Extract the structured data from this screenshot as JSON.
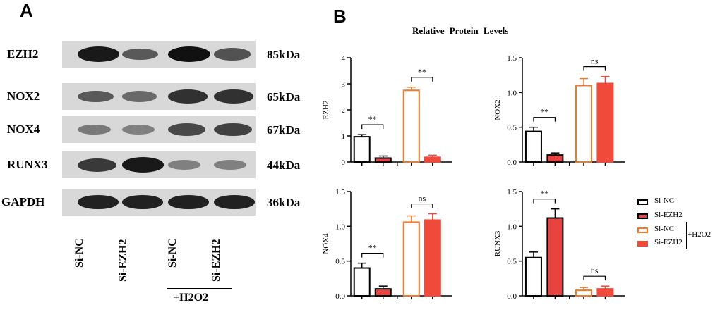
{
  "panelA": {
    "letter": "A",
    "lanes": [
      "Si-NC",
      "Si-EZH2",
      "Si-NC",
      "Si-EZH2"
    ],
    "treatment": "+H2O2",
    "blots": [
      {
        "protein": "EZH2",
        "size": "85kDa",
        "intensity": [
          0.95,
          0.55,
          1.0,
          0.6
        ]
      },
      {
        "protein": "NOX2",
        "size": "65kDa",
        "intensity": [
          0.55,
          0.45,
          0.8,
          0.8
        ]
      },
      {
        "protein": "NOX4",
        "size": "67kDa",
        "intensity": [
          0.35,
          0.3,
          0.65,
          0.7
        ]
      },
      {
        "protein": "RUNX3",
        "size": "44kDa",
        "intensity": [
          0.75,
          0.95,
          0.3,
          0.3
        ]
      },
      {
        "protein": "GAPDH",
        "size": "36kDa",
        "intensity": [
          0.9,
          0.9,
          0.9,
          0.9
        ]
      }
    ]
  },
  "panelB": {
    "letter": "B",
    "title": "Relative Protein Levels",
    "colors": {
      "outline_black": "#000000",
      "red_fill": "#e8433e",
      "orange_outline": "#f07a2a",
      "red_solid": "#f04a3a"
    },
    "legend": {
      "items": [
        "Si-NC",
        "Si-EZH2",
        "Si-NC",
        "Si-EZH2"
      ],
      "group_label": "H2O2"
    }
  },
  "chart_data": [
    {
      "type": "bar",
      "ylabel": "EZH2",
      "ylim": [
        0,
        4
      ],
      "yticks": [
        "0",
        "1",
        "2",
        "3",
        "4"
      ],
      "values": [
        0.97,
        0.15,
        2.75,
        0.18
      ],
      "errors": [
        0.08,
        0.08,
        0.12,
        0.08
      ],
      "annotations": [
        {
          "groups": [
            0,
            1
          ],
          "text": "**"
        },
        {
          "groups": [
            2,
            3
          ],
          "text": "**"
        }
      ]
    },
    {
      "type": "bar",
      "ylabel": "NOX2",
      "ylim": [
        0,
        1.5
      ],
      "yticks": [
        "0.0",
        "0.5",
        "1.0",
        "1.5"
      ],
      "values": [
        0.44,
        0.1,
        1.1,
        1.13
      ],
      "errors": [
        0.06,
        0.03,
        0.1,
        0.1
      ],
      "annotations": [
        {
          "groups": [
            0,
            1
          ],
          "text": "**"
        },
        {
          "groups": [
            2,
            3
          ],
          "text": "ns"
        }
      ]
    },
    {
      "type": "bar",
      "ylabel": "NOX4",
      "ylim": [
        0,
        1.5
      ],
      "yticks": [
        "0.0",
        "0.5",
        "1.0",
        "1.5"
      ],
      "values": [
        0.4,
        0.1,
        1.06,
        1.09
      ],
      "errors": [
        0.07,
        0.04,
        0.09,
        0.09
      ],
      "annotations": [
        {
          "groups": [
            0,
            1
          ],
          "text": "**"
        },
        {
          "groups": [
            2,
            3
          ],
          "text": "ns"
        }
      ]
    },
    {
      "type": "bar",
      "ylabel": "RUNX3",
      "ylim": [
        0,
        1.5
      ],
      "yticks": [
        "0.0",
        "0.5",
        "1.0",
        "1.5"
      ],
      "values": [
        0.55,
        1.12,
        0.08,
        0.1
      ],
      "errors": [
        0.08,
        0.13,
        0.04,
        0.04
      ],
      "annotations": [
        {
          "groups": [
            0,
            1
          ],
          "text": "**"
        },
        {
          "groups": [
            2,
            3
          ],
          "text": "ns"
        }
      ]
    }
  ]
}
